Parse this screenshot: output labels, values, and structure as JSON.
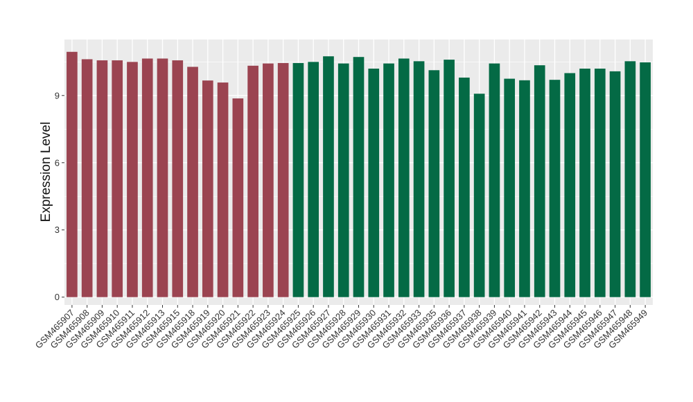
{
  "chart_data": {
    "type": "bar",
    "ylabel": "Expression Level",
    "xlabel": "",
    "ylim": [
      -0.35,
      11.5
    ],
    "yticks": [
      0,
      3,
      6,
      9
    ],
    "grid": true,
    "legend": "none",
    "panel_background": "#EBEBEB",
    "colors": {
      "group_a": "#9B4451",
      "group_b": "#046A45"
    },
    "categories": [
      "GSM465907",
      "GSM465908",
      "GSM465909",
      "GSM465910",
      "GSM465911",
      "GSM465912",
      "GSM465913",
      "GSM465915",
      "GSM465918",
      "GSM465919",
      "GSM465920",
      "GSM465921",
      "GSM465922",
      "GSM465923",
      "GSM465924",
      "GSM465925",
      "GSM465926",
      "GSM465927",
      "GSM465928",
      "GSM465929",
      "GSM465930",
      "GSM465931",
      "GSM465932",
      "GSM465933",
      "GSM465935",
      "GSM465936",
      "GSM465937",
      "GSM465938",
      "GSM465939",
      "GSM465940",
      "GSM465941",
      "GSM465942",
      "GSM465943",
      "GSM465944",
      "GSM465945",
      "GSM465946",
      "GSM465947",
      "GSM465948",
      "GSM465949"
    ],
    "values": [
      10.95,
      10.62,
      10.57,
      10.57,
      10.5,
      10.65,
      10.65,
      10.57,
      10.28,
      9.67,
      9.58,
      8.87,
      10.33,
      10.43,
      10.45,
      10.45,
      10.5,
      10.75,
      10.43,
      10.72,
      10.2,
      10.43,
      10.65,
      10.53,
      10.13,
      10.6,
      9.8,
      9.08,
      10.43,
      9.75,
      9.68,
      10.35,
      9.7,
      10.0,
      10.2,
      10.2,
      10.08,
      10.53,
      10.48
    ],
    "groups": [
      "a",
      "a",
      "a",
      "a",
      "a",
      "a",
      "a",
      "a",
      "a",
      "a",
      "a",
      "a",
      "a",
      "a",
      "a",
      "b",
      "b",
      "b",
      "b",
      "b",
      "b",
      "b",
      "b",
      "b",
      "b",
      "b",
      "b",
      "b",
      "b",
      "b",
      "b",
      "b",
      "b",
      "b",
      "b",
      "b",
      "b",
      "b",
      "b"
    ]
  }
}
